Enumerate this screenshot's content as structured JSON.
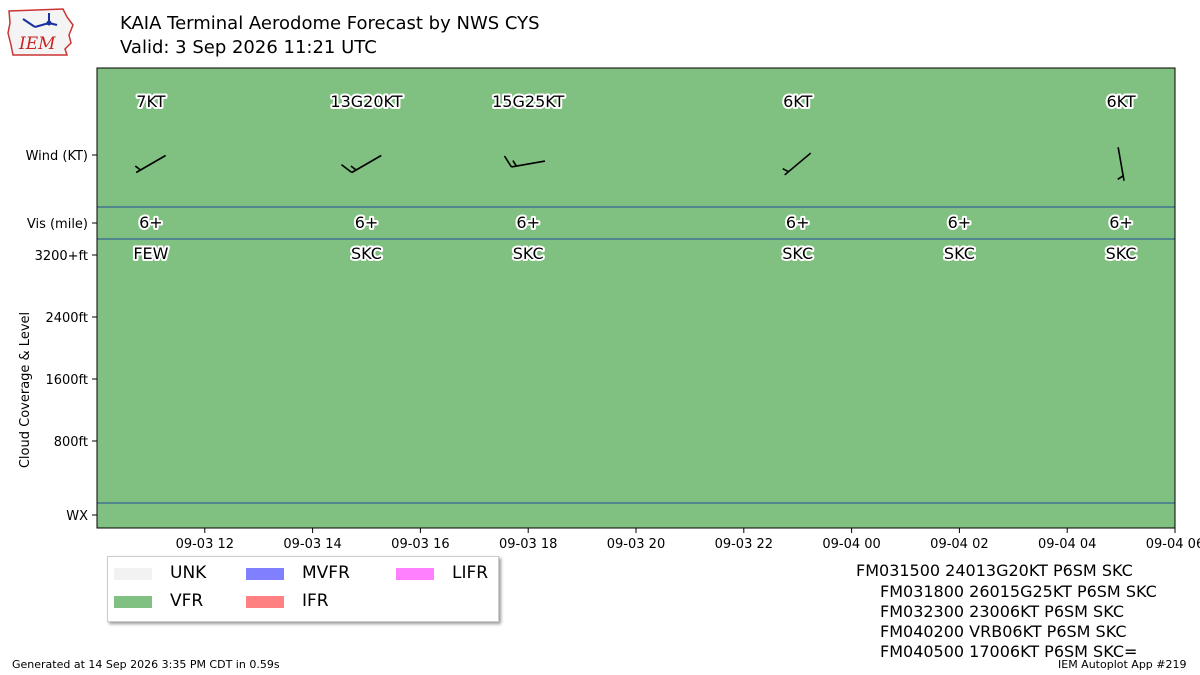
{
  "header": {
    "title": "KAIA Terminal Aerodome Forecast by NWS CYS",
    "valid": "Valid: 3 Sep 2026 11:21 UTC"
  },
  "logo": {
    "text": "IEM"
  },
  "chart_data": {
    "type": "timeline",
    "xlim": [
      "2026-09-03 10:00",
      "2026-09-04 06:00"
    ],
    "x_ticks": [
      "09-03 12",
      "09-03 14",
      "09-03 16",
      "09-03 18",
      "09-03 20",
      "09-03 22",
      "09-04 00",
      "09-04 02",
      "09-04 04",
      "09-04 06"
    ],
    "ylabel": "Cloud Coverage & Level",
    "y_ticks": [
      "Wind (KT)",
      "Vis (mile)",
      "3200+ft",
      "2400ft",
      "1600ft",
      "800ft",
      "WX"
    ],
    "flight_category": {
      "label": "VFR",
      "color": "#80c080"
    },
    "periods": [
      {
        "time": "2026-09-03 11:00",
        "wind_label": "7KT",
        "wind_dir": 240,
        "wind_speed": 7,
        "gust": null,
        "vis": "6+",
        "sky": "FEW"
      },
      {
        "time": "2026-09-03 15:00",
        "wind_label": "13G20KT",
        "wind_dir": 240,
        "wind_speed": 13,
        "gust": 20,
        "vis": "6+",
        "sky": "SKC"
      },
      {
        "time": "2026-09-03 18:00",
        "wind_label": "15G25KT",
        "wind_dir": 260,
        "wind_speed": 15,
        "gust": 25,
        "vis": "6+",
        "sky": "SKC"
      },
      {
        "time": "2026-09-03 23:00",
        "wind_label": "6KT",
        "wind_dir": 230,
        "wind_speed": 6,
        "gust": null,
        "vis": "6+",
        "sky": "SKC"
      },
      {
        "time": "2026-09-04 02:00",
        "wind_label": "",
        "wind_dir": null,
        "wind_speed": 6,
        "gust": null,
        "vis": "6+",
        "sky": "SKC"
      },
      {
        "time": "2026-09-04 05:00",
        "wind_label": "6KT",
        "wind_dir": 170,
        "wind_speed": 6,
        "gust": null,
        "vis": "6+",
        "sky": "SKC"
      }
    ]
  },
  "legend": [
    {
      "label": "UNK",
      "color": "#f2f2f2"
    },
    {
      "label": "VFR",
      "color": "#80c080"
    },
    {
      "label": "MVFR",
      "color": "#8080ff"
    },
    {
      "label": "IFR",
      "color": "#ff8080"
    },
    {
      "label": "LIFR",
      "color": "#ff80ff"
    }
  ],
  "taf_text": [
    "FM031500 24013G20KT P6SM SKC",
    "FM031800 26015G25KT P6SM SKC",
    "FM032300 23006KT P6SM SKC",
    "FM040200 VRB06KT P6SM SKC",
    "FM040500 17006KT P6SM SKC="
  ],
  "footer": {
    "generated": "Generated at 14 Sep 2026 3:35 PM CDT in 0.59s",
    "app": "IEM Autoplot App #219"
  }
}
